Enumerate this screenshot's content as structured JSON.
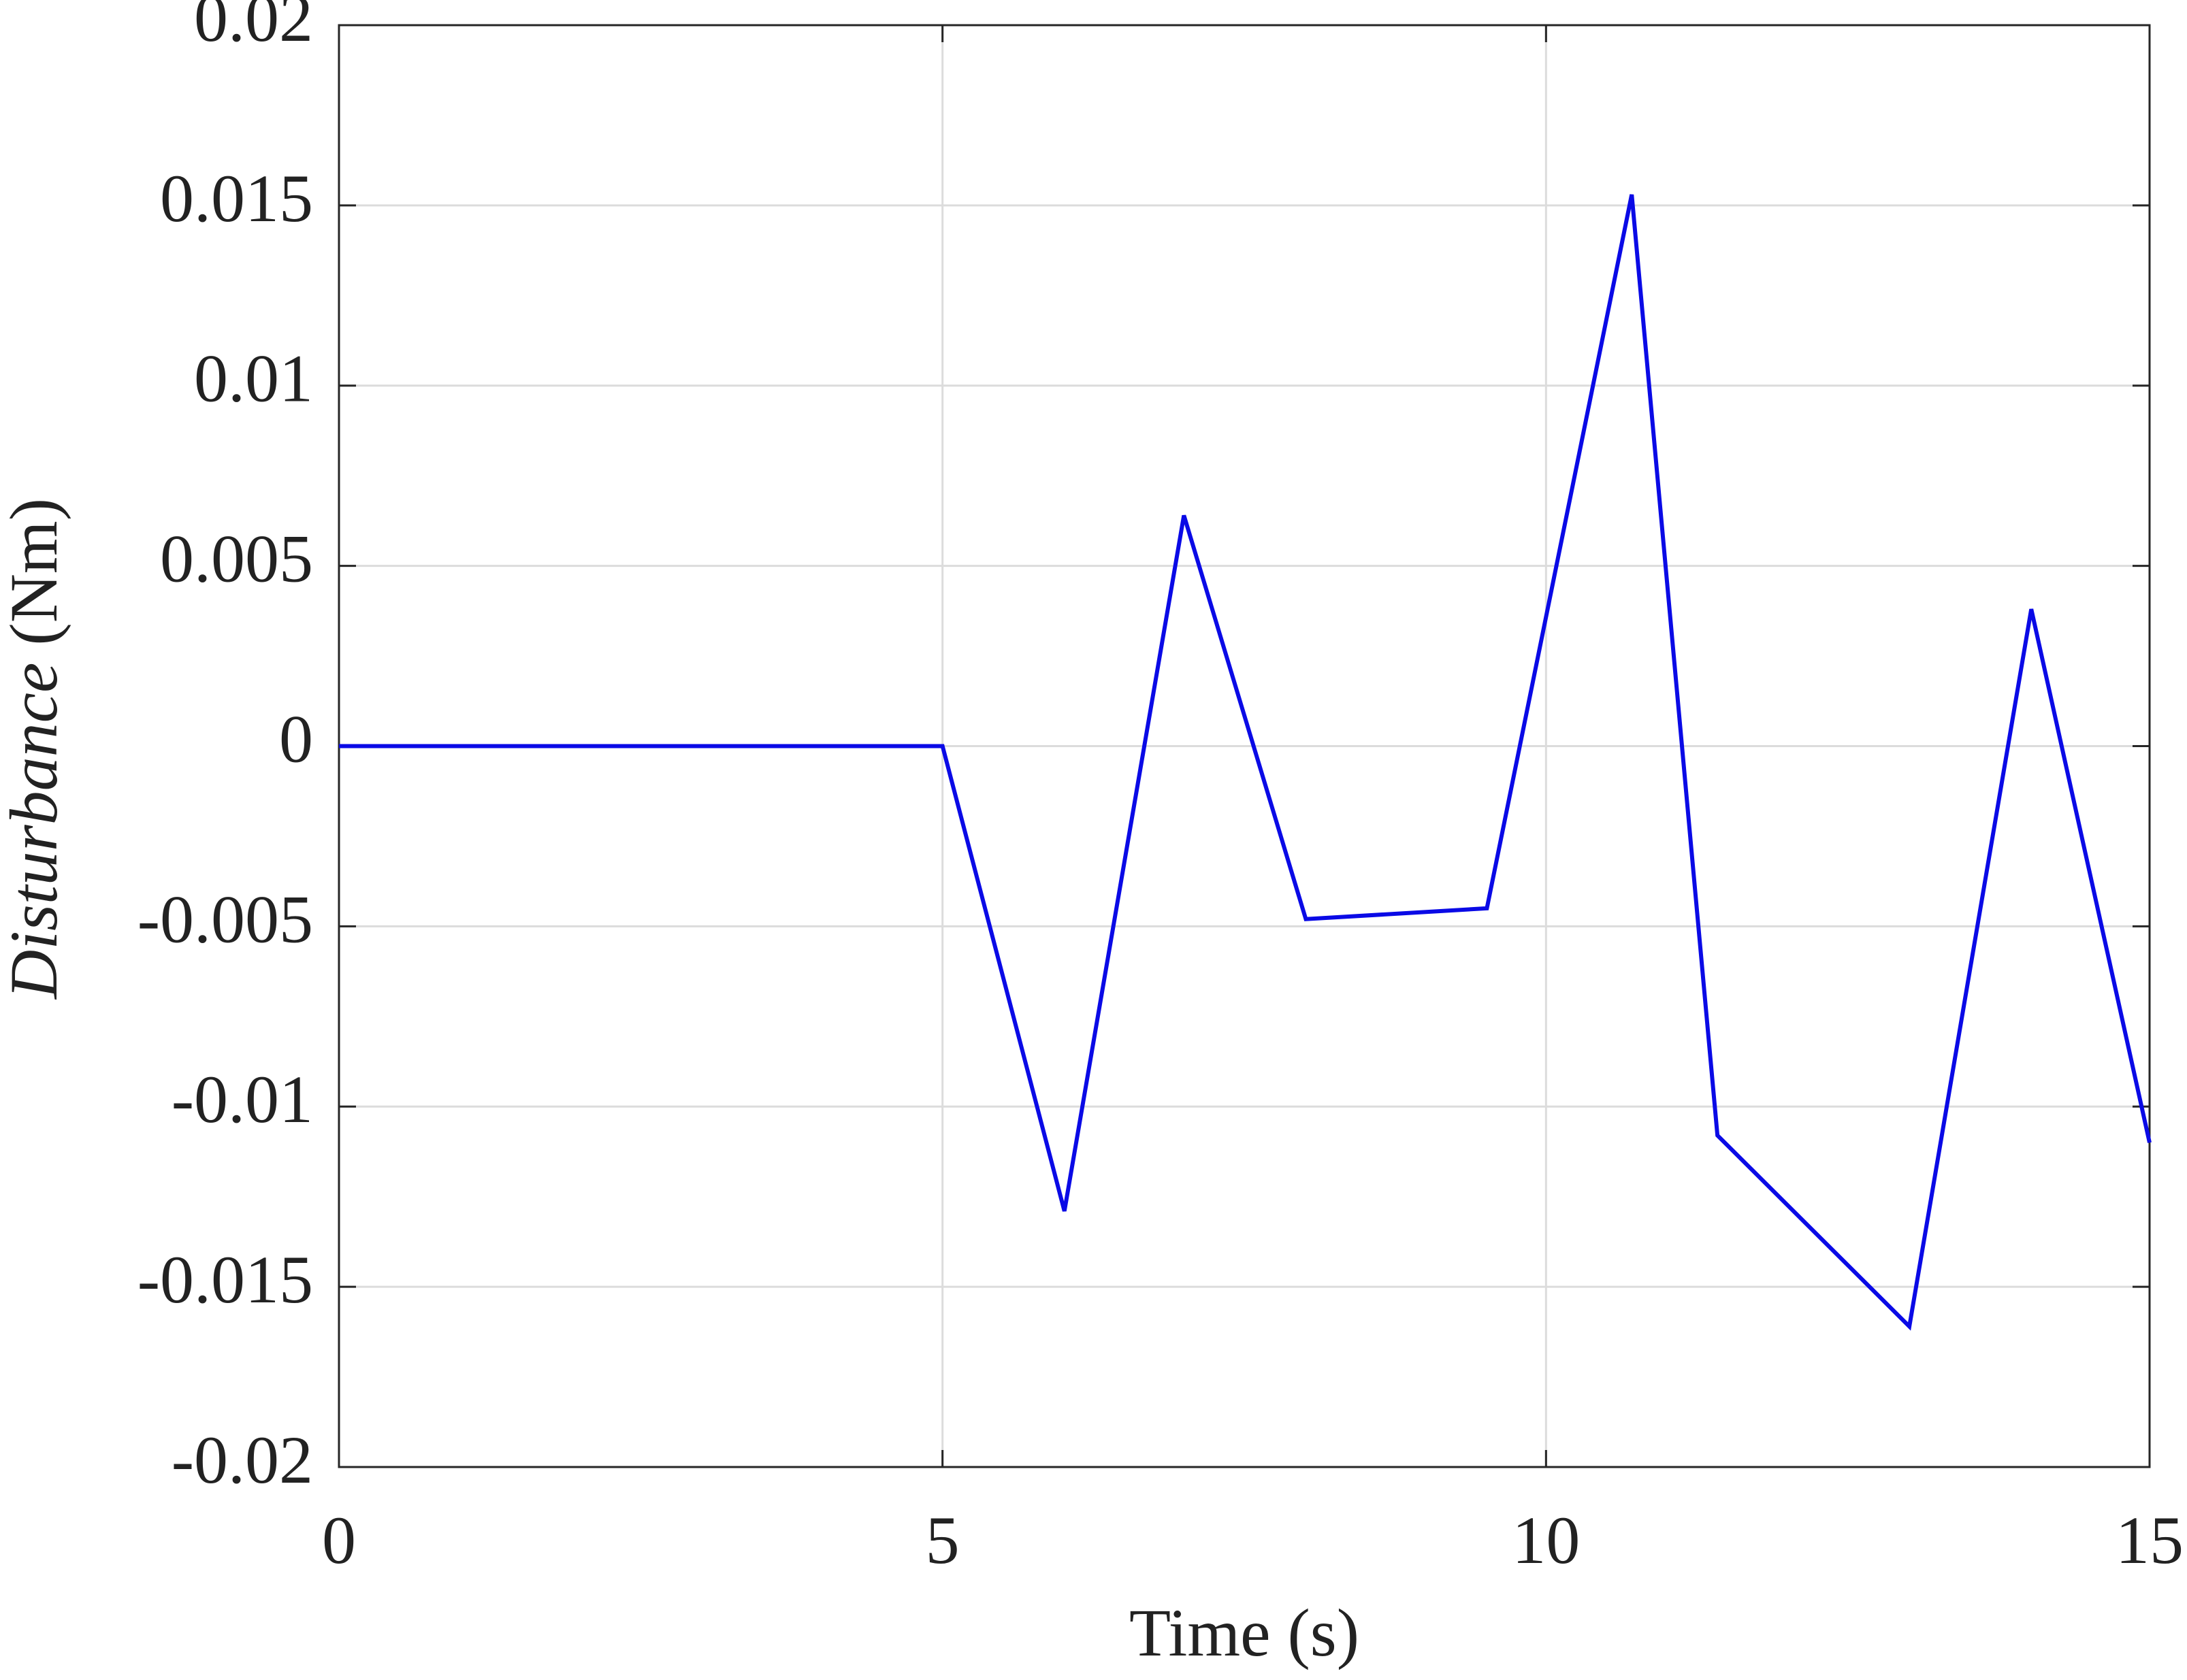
{
  "chart_data": {
    "type": "line",
    "xlabel": "Time (s)",
    "ylabel": [
      "Disturbance",
      "(Nm)"
    ],
    "x": [
      0,
      5,
      6.01,
      7.0,
      8.01,
      9.51,
      10.71,
      11.42,
      13.01,
      14.02,
      15
    ],
    "series": [
      {
        "color": "#0a0ae6",
        "values": [
          0,
          0,
          -0.0129,
          0.0064,
          -0.0048,
          -0.0045,
          0.0153,
          -0.0108,
          -0.0161,
          0.0038,
          -0.011
        ]
      }
    ],
    "xlim": [
      0,
      15
    ],
    "xticks": [
      0,
      5,
      10,
      15
    ],
    "ylim": [
      -0.02,
      0.02
    ],
    "yticks": [
      -0.02,
      -0.015,
      -0.01,
      -0.005,
      0,
      0.005,
      0.01,
      0.015,
      0.02
    ],
    "grid": true
  }
}
